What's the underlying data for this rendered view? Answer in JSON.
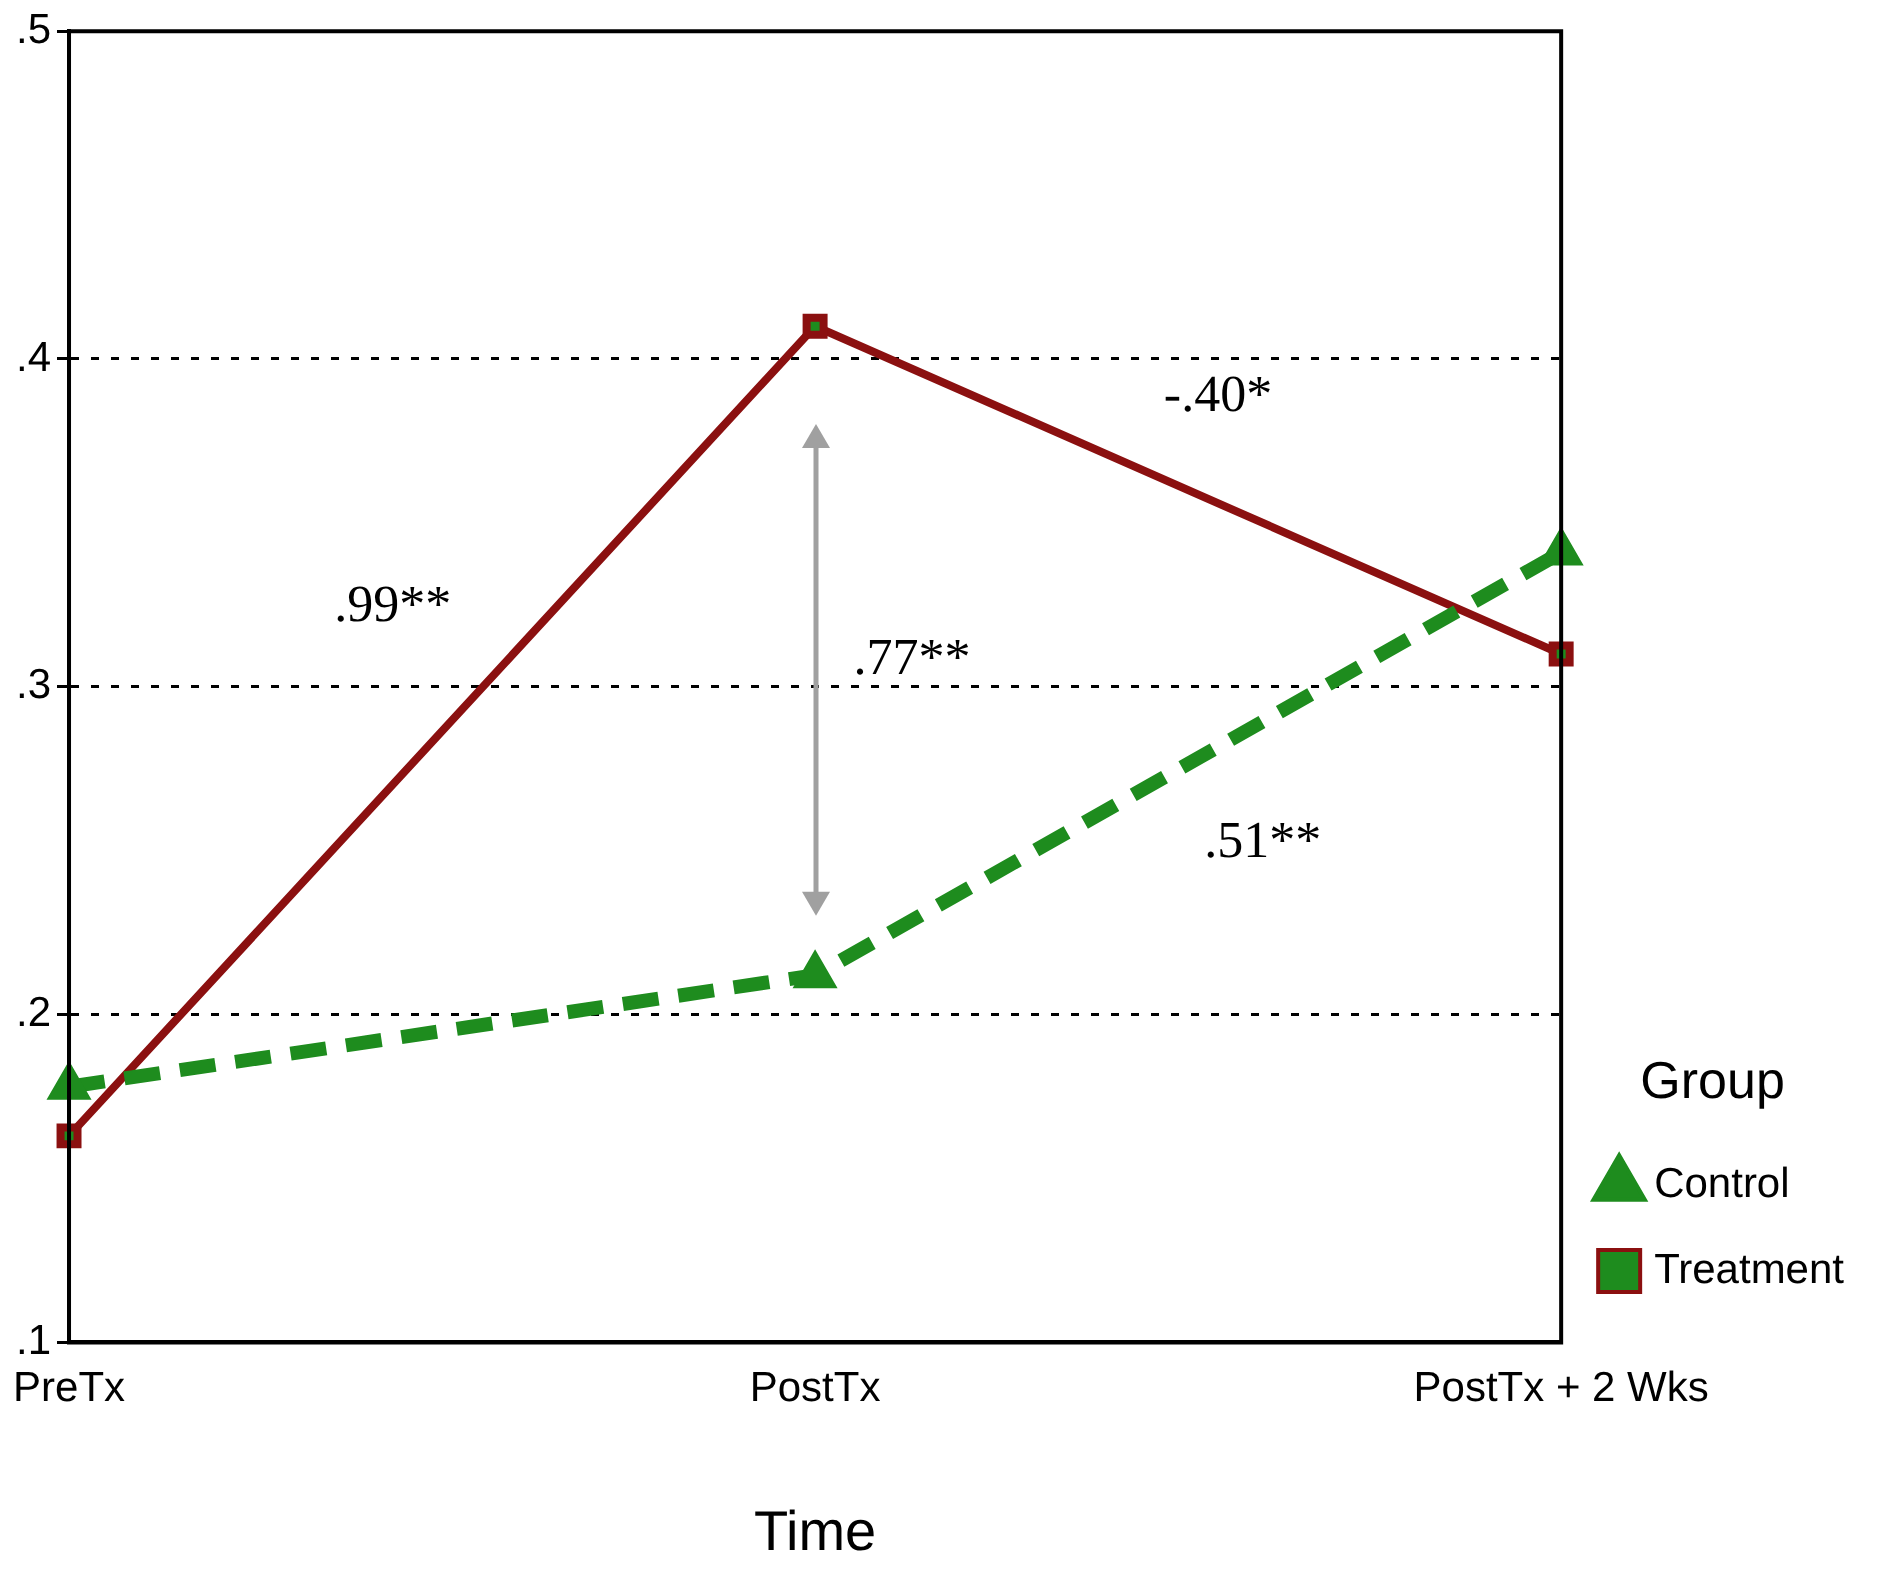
{
  "chart_data": {
    "type": "line",
    "xlabel": "Time",
    "legend_title": "Group",
    "categories": [
      "PreTx",
      "PostTx",
      "PostTx + 2 Wks"
    ],
    "series": [
      {
        "name": "Control",
        "color": "#1e8c1e",
        "values": [
          0.178,
          0.212,
          0.341
        ],
        "marker": "triangle",
        "line_style": "dashed"
      },
      {
        "name": "Treatment",
        "color": "#8b1010",
        "values": [
          0.163,
          0.41,
          0.31
        ],
        "marker": "square",
        "line_style": "solid"
      }
    ],
    "ylim": [
      0.1,
      0.5
    ],
    "yticks": [
      {
        "value": 0.1,
        "label": ".1"
      },
      {
        "value": 0.2,
        "label": ".2"
      },
      {
        "value": 0.3,
        "label": ".3"
      },
      {
        "value": 0.4,
        "label": ".4"
      },
      {
        "value": 0.5,
        "label": ".5"
      }
    ],
    "grid": "y",
    "legend": "right",
    "annotations": [
      ".99**",
      "-.40*",
      ".77**",
      ".51**"
    ]
  }
}
